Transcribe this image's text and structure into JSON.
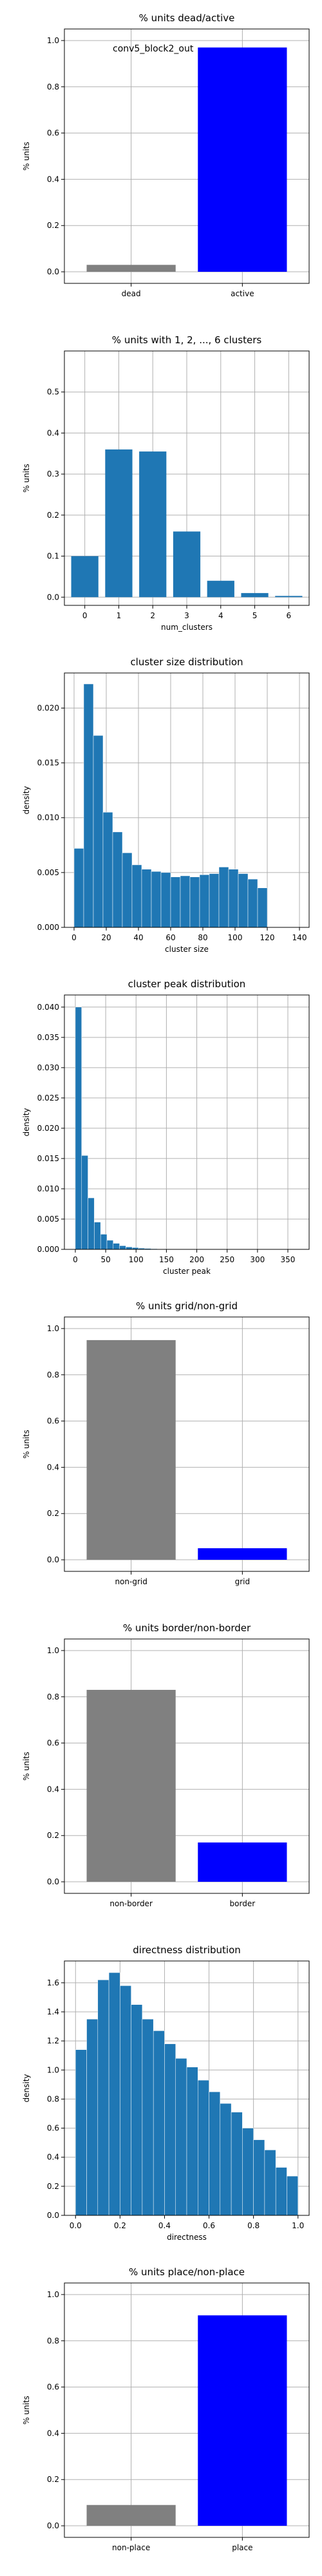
{
  "colors": {
    "bar_default": "#1f77b4",
    "gray": "#808080",
    "blue": "#0000ff",
    "grid": "#b0b0b0"
  },
  "chart_data": [
    {
      "id": "dead-active",
      "type": "bar",
      "title": "% units dead/active",
      "xlabel": "",
      "ylabel": "% units",
      "annotation": "conv5_block2_out",
      "categories": [
        "dead",
        "active"
      ],
      "values": [
        0.03,
        0.97
      ],
      "bar_colors": [
        "#808080",
        "#0000ff"
      ],
      "ylim": [
        -0.05,
        1.05
      ],
      "yticks": [
        "0.0",
        "0.2",
        "0.4",
        "0.6",
        "0.8",
        "1.0"
      ],
      "grid": true
    },
    {
      "id": "clusters",
      "type": "bar",
      "title": "% units with 1, 2, ..., 6 clusters",
      "xlabel": "num_clusters",
      "ylabel": "% units",
      "categories": [
        "0",
        "1",
        "2",
        "3",
        "4",
        "5",
        "6"
      ],
      "values": [
        0.1,
        0.36,
        0.355,
        0.16,
        0.04,
        0.01,
        0.003
      ],
      "ylim": [
        -0.02,
        0.6
      ],
      "yticks": [
        "0.0",
        "0.1",
        "0.2",
        "0.3",
        "0.4",
        "0.5"
      ],
      "grid": true
    },
    {
      "id": "cluster-size",
      "type": "bar",
      "title": "cluster size distribution",
      "xlabel": "cluster size",
      "ylabel": "density",
      "bin_start": 0,
      "bin_width": 6,
      "values": [
        0.0072,
        0.0222,
        0.0175,
        0.0105,
        0.0087,
        0.0068,
        0.0057,
        0.0053,
        0.0051,
        0.005,
        0.0046,
        0.0047,
        0.0046,
        0.0048,
        0.0049,
        0.0055,
        0.0053,
        0.0049,
        0.0044,
        0.0036
      ],
      "xlim": [
        -6,
        146
      ],
      "ylim": [
        0,
        0.0232
      ],
      "xticks": [
        "0",
        "20",
        "40",
        "60",
        "80",
        "100",
        "120",
        "140"
      ],
      "yticks": [
        "0.000",
        "0.005",
        "0.010",
        "0.015",
        "0.020"
      ],
      "grid": true
    },
    {
      "id": "cluster-peak",
      "type": "bar",
      "title": "cluster peak distribution",
      "xlabel": "cluster peak",
      "ylabel": "density",
      "bin_start": 0,
      "bin_width": 10.4,
      "values": [
        0.04,
        0.0155,
        0.0085,
        0.0045,
        0.0025,
        0.0015,
        0.001,
        0.0006,
        0.0004,
        0.0003,
        0.0002,
        0.00015,
        0.0001,
        8e-05,
        6e-05,
        5e-05,
        4e-05,
        3e-05,
        2e-05,
        2e-05,
        1e-05,
        1e-05,
        1e-05,
        1e-05,
        1e-05,
        1e-05,
        1e-05,
        1e-05,
        1e-05,
        1e-05,
        1e-05,
        1e-05,
        1e-05,
        1e-05,
        1e-05
      ],
      "xlim": [
        -18,
        385
      ],
      "ylim": [
        0,
        0.042
      ],
      "xticks": [
        "0",
        "50",
        "100",
        "150",
        "200",
        "250",
        "300",
        "350"
      ],
      "yticks": [
        "0.000",
        "0.005",
        "0.010",
        "0.015",
        "0.020",
        "0.025",
        "0.030",
        "0.035",
        "0.040"
      ],
      "grid": true
    },
    {
      "id": "grid-nongrid",
      "type": "bar",
      "title": "% units grid/non-grid",
      "xlabel": "",
      "ylabel": "% units",
      "categories": [
        "non-grid",
        "grid"
      ],
      "values": [
        0.95,
        0.05
      ],
      "bar_colors": [
        "#808080",
        "#0000ff"
      ],
      "ylim": [
        -0.05,
        1.05
      ],
      "yticks": [
        "0.0",
        "0.2",
        "0.4",
        "0.6",
        "0.8",
        "1.0"
      ],
      "grid": true
    },
    {
      "id": "border-nonborder",
      "type": "bar",
      "title": "% units border/non-border",
      "xlabel": "",
      "ylabel": "% units",
      "categories": [
        "non-border",
        "border"
      ],
      "values": [
        0.83,
        0.17
      ],
      "bar_colors": [
        "#808080",
        "#0000ff"
      ],
      "ylim": [
        -0.05,
        1.05
      ],
      "yticks": [
        "0.0",
        "0.2",
        "0.4",
        "0.6",
        "0.8",
        "1.0"
      ],
      "grid": true
    },
    {
      "id": "directness",
      "type": "bar",
      "title": "directness distribution",
      "xlabel": "directness",
      "ylabel": "density",
      "bin_start": 0,
      "bin_width": 0.05,
      "values": [
        1.14,
        1.35,
        1.62,
        1.67,
        1.58,
        1.45,
        1.35,
        1.27,
        1.18,
        1.08,
        1.02,
        0.93,
        0.85,
        0.77,
        0.71,
        0.6,
        0.52,
        0.45,
        0.33,
        0.27
      ],
      "xlim": [
        -0.05,
        1.05
      ],
      "ylim": [
        0,
        1.75
      ],
      "xticks": [
        "0.0",
        "0.2",
        "0.4",
        "0.6",
        "0.8",
        "1.0"
      ],
      "yticks": [
        "0.0",
        "0.2",
        "0.4",
        "0.6",
        "0.8",
        "1.0",
        "1.2",
        "1.4",
        "1.6"
      ],
      "grid": true
    },
    {
      "id": "place-nonplace",
      "type": "bar",
      "title": "% units place/non-place",
      "xlabel": "",
      "ylabel": "% units",
      "categories": [
        "non-place",
        "place"
      ],
      "values": [
        0.09,
        0.91
      ],
      "bar_colors": [
        "#808080",
        "#0000ff"
      ],
      "ylim": [
        -0.05,
        1.05
      ],
      "yticks": [
        "0.0",
        "0.2",
        "0.4",
        "0.6",
        "0.8",
        "1.0"
      ],
      "grid": true
    }
  ]
}
